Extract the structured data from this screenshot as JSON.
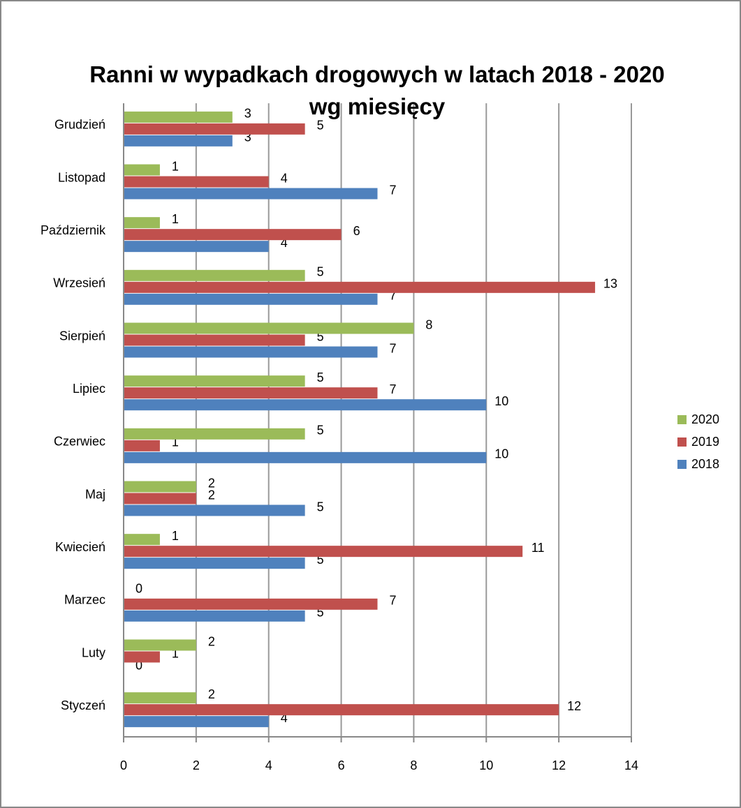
{
  "chart_data": {
    "type": "hbar",
    "title": "Ranni w wypadkach drogowych w latach 2018 - 2020 wg miesięcy",
    "categories": [
      "Styczeń",
      "Luty",
      "Marzec",
      "Kwiecień",
      "Maj",
      "Czerwiec",
      "Lipiec",
      "Sierpień",
      "Wrzesień",
      "Październik",
      "Listopad",
      "Grudzień"
    ],
    "series": [
      {
        "name": "2018",
        "color": "#4f81bd",
        "values": [
          4,
          0,
          5,
          5,
          5,
          10,
          10,
          7,
          7,
          4,
          7,
          3
        ]
      },
      {
        "name": "2019",
        "color": "#c0504d",
        "values": [
          12,
          1,
          7,
          11,
          2,
          1,
          7,
          5,
          13,
          6,
          4,
          5
        ]
      },
      {
        "name": "2020",
        "color": "#9bbb59",
        "values": [
          2,
          2,
          0,
          1,
          2,
          5,
          5,
          8,
          5,
          1,
          1,
          3
        ]
      }
    ],
    "xlim": [
      0,
      14
    ],
    "xticks": [
      0,
      2,
      4,
      6,
      8,
      10,
      12,
      14
    ],
    "grid": true,
    "legend": "right"
  }
}
